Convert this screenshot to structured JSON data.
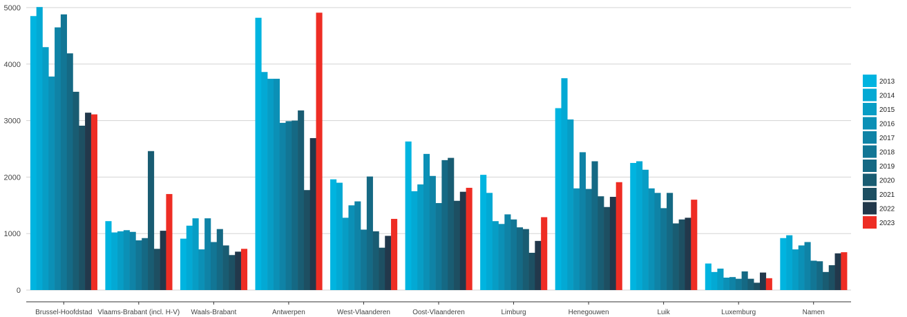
{
  "chart_data": {
    "type": "bar",
    "title": "",
    "xlabel": "",
    "ylabel": "",
    "ylim": [
      0,
      5000
    ],
    "yticks": [
      0,
      1000,
      2000,
      3000,
      4000,
      5000
    ],
    "grid": true,
    "legend_position": "right",
    "categories": [
      "Brussel-Hoofdstad",
      "Vlaams-Brabant (incl. H-V)",
      "Waals-Brabant",
      "Antwerpen",
      "West-Vlaanderen",
      "Oost-Vlaanderen",
      "Limburg",
      "Henegouwen",
      "Luik",
      "Luxemburg",
      "Namen"
    ],
    "series": [
      {
        "name": "2013",
        "color": "#00b4e0",
        "values": [
          4850,
          1220,
          910,
          4820,
          1960,
          2630,
          2040,
          3220,
          2250,
          470,
          920
        ]
      },
      {
        "name": "2014",
        "color": "#03a9d4",
        "values": [
          5010,
          1020,
          1140,
          3860,
          1900,
          1750,
          1720,
          3750,
          2280,
          320,
          970
        ]
      },
      {
        "name": "2015",
        "color": "#079dc5",
        "values": [
          4300,
          1040,
          1270,
          3740,
          1280,
          1870,
          1220,
          3020,
          2130,
          380,
          720
        ]
      },
      {
        "name": "2016",
        "color": "#0b90b6",
        "values": [
          3780,
          1060,
          720,
          3740,
          1500,
          2410,
          1170,
          1800,
          1800,
          220,
          790
        ]
      },
      {
        "name": "2017",
        "color": "#0f83a6",
        "values": [
          4650,
          1030,
          1270,
          2960,
          1570,
          2020,
          1340,
          2440,
          1720,
          230,
          850
        ]
      },
      {
        "name": "2018",
        "color": "#127695",
        "values": [
          4880,
          880,
          850,
          2990,
          1070,
          1540,
          1250,
          1790,
          1450,
          200,
          520
        ]
      },
      {
        "name": "2019",
        "color": "#156984",
        "values": [
          4190,
          920,
          1080,
          3000,
          2010,
          2300,
          1110,
          2280,
          1720,
          330,
          510
        ]
      },
      {
        "name": "2020",
        "color": "#195c72",
        "values": [
          3510,
          2460,
          790,
          3180,
          1040,
          2340,
          1080,
          1660,
          1180,
          200,
          320
        ]
      },
      {
        "name": "2021",
        "color": "#1d4f62",
        "values": [
          2910,
          730,
          620,
          1770,
          750,
          1580,
          660,
          1470,
          1250,
          130,
          440
        ]
      },
      {
        "name": "2022",
        "color": "#22384b",
        "values": [
          3140,
          1050,
          680,
          2690,
          960,
          1740,
          870,
          1650,
          1280,
          310,
          650
        ]
      },
      {
        "name": "2023",
        "color": "#ee2d24",
        "values": [
          3110,
          1700,
          730,
          4910,
          1260,
          1810,
          1290,
          1910,
          1600,
          210,
          670
        ]
      }
    ]
  }
}
